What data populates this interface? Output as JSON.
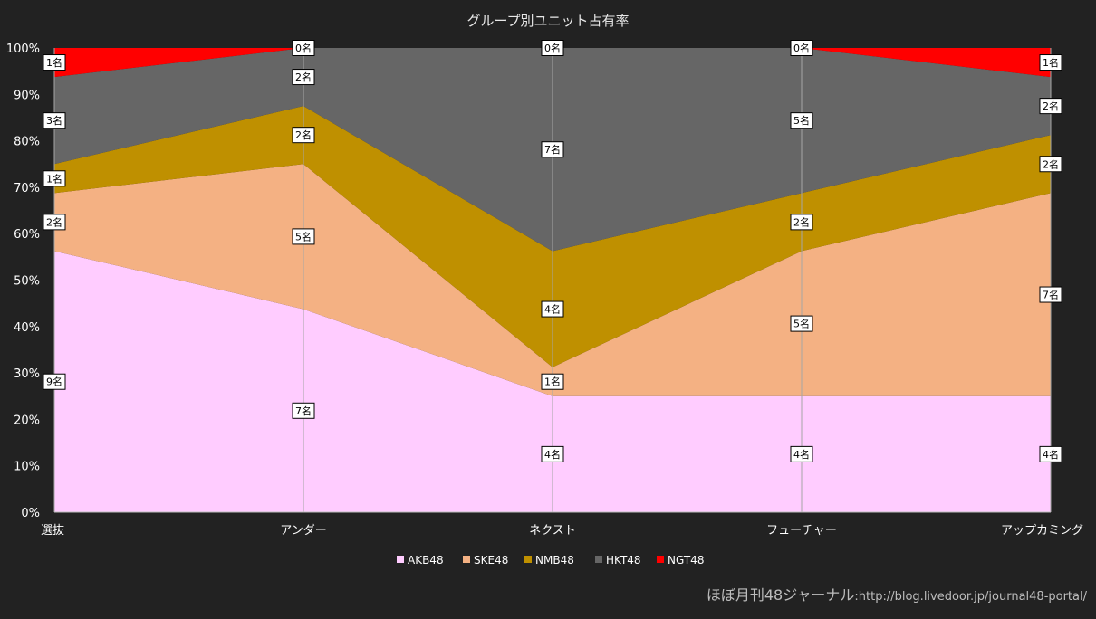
{
  "chart_data": {
    "type": "area",
    "stacked": "percent",
    "title": "グループ別ユニット占有率",
    "categories": [
      "選抜",
      "アンダー",
      "ネクスト",
      "フューチャー",
      "アップカミング"
    ],
    "unit_suffix": "名",
    "series": [
      {
        "name": "AKB48",
        "color": "#ffccff",
        "values": [
          9,
          7,
          4,
          4,
          4
        ]
      },
      {
        "name": "SKE48",
        "color": "#f4b183",
        "values": [
          2,
          5,
          1,
          5,
          7
        ]
      },
      {
        "name": "NMB48",
        "color": "#bf9000",
        "values": [
          1,
          2,
          4,
          2,
          2
        ]
      },
      {
        "name": "HKT48",
        "color": "#666666",
        "values": [
          3,
          2,
          7,
          5,
          2
        ]
      },
      {
        "name": "NGT48",
        "color": "#ff0000",
        "values": [
          1,
          0,
          0,
          0,
          1
        ]
      }
    ],
    "y_ticks": [
      "0%",
      "10%",
      "20%",
      "30%",
      "40%",
      "50%",
      "60%",
      "70%",
      "80%",
      "90%",
      "100%"
    ],
    "ylim": [
      0,
      100
    ],
    "grid": "vertical",
    "legend_position": "bottom"
  },
  "footer": {
    "credit_main": "ほぼ月刊48ジャーナル",
    "credit_url": ":http://blog.livedoor.jp/journal48-portal/"
  }
}
